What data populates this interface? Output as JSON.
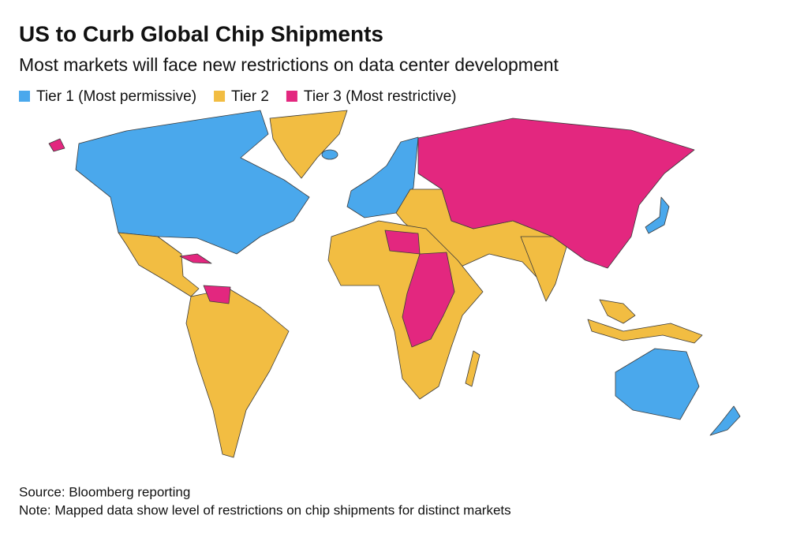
{
  "header": {
    "title": "US to Curb Global Chip Shipments",
    "subtitle": "Most markets will face new restrictions on data center development"
  },
  "legend": [
    {
      "name": "Tier 1 (Most permissive)",
      "color": "#4aa8ec"
    },
    {
      "name": "Tier 2",
      "color": "#f2bd42"
    },
    {
      "name": "Tier 3 (Most restrictive)",
      "color": "#e3277f"
    }
  ],
  "footer": {
    "source": "Source: Bloomberg reporting",
    "note": "Note: Mapped data show level of restrictions on chip shipments for distinct markets"
  }
}
